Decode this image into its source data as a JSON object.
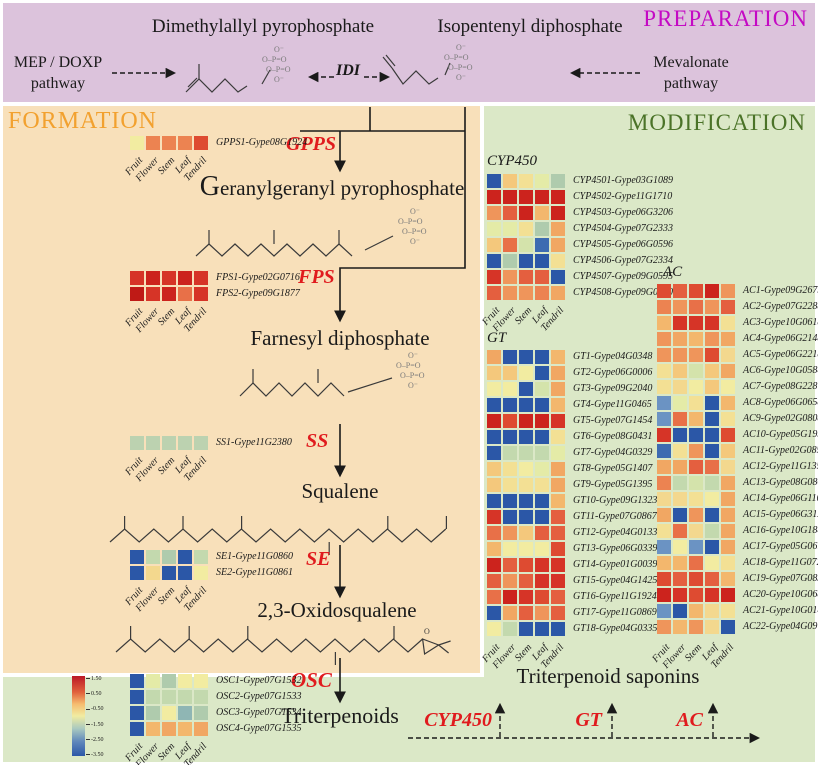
{
  "preparation": {
    "title": "PREPARATION",
    "title_color": "#c40ac4",
    "dmapp": "Dimethylallyl pyrophosphate",
    "ipp": "Isopentenyl diphosphate",
    "mep1": "MEP / DOXP",
    "mep2": "pathway",
    "mev1": "Mevalonate",
    "mev2": "pathway",
    "idi": "IDI"
  },
  "tissues": [
    "Fruit",
    "Flower",
    "Stem",
    "Leaf",
    "Tendril"
  ],
  "formation": {
    "title": "FORMATION",
    "title_color": "#f2a12f",
    "colorbar": {
      "ticks": [
        "1.50",
        "0.50",
        "-0.50",
        "-1.50",
        "-2.50",
        "-3.50"
      ]
    },
    "steps": [
      {
        "enzyme": "GPPS",
        "product": "Geranylgeranyl pyrophosphate",
        "genes": [
          {
            "label": "GPPS1-Gype08G1924",
            "colors": [
              "#f2eca1",
              "#ec8351",
              "#ec8351",
              "#ec8351",
              "#de4b31"
            ]
          }
        ]
      },
      {
        "enzyme": "FPS",
        "product": "Farnesyl diphosphate",
        "genes": [
          {
            "label": "FPS1-Gype02G0716",
            "colors": [
              "#d63427",
              "#cc231d",
              "#d63427",
              "#cc231d",
              "#d63427"
            ]
          },
          {
            "label": "FPS2-Gype09G1877",
            "colors": [
              "#bf1a16",
              "#d63427",
              "#cc231d",
              "#e87048",
              "#d63427"
            ]
          }
        ]
      },
      {
        "enzyme": "SS",
        "product": "Squalene",
        "genes": [
          {
            "label": "SS1-Gype11G2380",
            "colors": [
              "#bcd2b0",
              "#bcd2b0",
              "#bcd2b0",
              "#bcd2b0",
              "#bcd2b0"
            ]
          }
        ]
      },
      {
        "enzyme": "SE",
        "product": "2,3-Oxidosqualene",
        "genes": [
          {
            "label": "SE1-Gype11G0860",
            "colors": [
              "#2b57a7",
              "#c3d9ae",
              "#afcbad",
              "#2b57a7",
              "#c3d9ae"
            ]
          },
          {
            "label": "SE2-Gype11G0861",
            "colors": [
              "#2b57a7",
              "#f3d88e",
              "#2b57a7",
              "#2b57a7",
              "#f2eca1"
            ]
          }
        ]
      },
      {
        "enzyme": "OSC",
        "product": "Triterpenoids",
        "genes": [
          {
            "label": "OSC1-Gype07G1532",
            "colors": [
              "#2b57a7",
              "#e4eba7",
              "#afcbad",
              "#f2eca1",
              "#f2eca1"
            ]
          },
          {
            "label": "OSC2-Gype07G1533",
            "colors": [
              "#2b57a7",
              "#c3d9ae",
              "#c3d9ae",
              "#c3d9ae",
              "#c3d9ae"
            ]
          },
          {
            "label": "OSC3-Gype07G1534",
            "colors": [
              "#2b57a7",
              "#afcbad",
              "#f2eca1",
              "#8fb6b4",
              "#afcbad"
            ]
          },
          {
            "label": "OSC4-Gype07G1535",
            "colors": [
              "#2b57a7",
              "#f3b76d",
              "#f1a763",
              "#f3b76d",
              "#f1a763"
            ]
          }
        ]
      }
    ]
  },
  "modification": {
    "title": "MODIFICATION",
    "title_color": "#4b7328",
    "groups": [
      {
        "name": "CYP450",
        "genes": [
          {
            "label": "CYP4501-Gype03G1089",
            "colors": [
              "#2b57a7",
              "#f4c87c",
              "#f3e094",
              "#e4eba7",
              "#afcbad"
            ]
          },
          {
            "label": "CYP4502-Gype11G1710",
            "colors": [
              "#cc231d",
              "#cc231d",
              "#cc231d",
              "#cc231d",
              "#cc231d"
            ]
          },
          {
            "label": "CYP4503-Gype06G3206",
            "colors": [
              "#ef955b",
              "#e45f3f",
              "#cc231d",
              "#f3b76d",
              "#cc231d"
            ]
          },
          {
            "label": "CYP4504-Gype07G2333",
            "colors": [
              "#e4eba7",
              "#e4eba7",
              "#f3e094",
              "#afcbad",
              "#f1a763"
            ]
          },
          {
            "label": "CYP4505-Gype06G0596",
            "colors": [
              "#f4c87c",
              "#e87048",
              "#d4e3ab",
              "#3d6bb1",
              "#f1a763"
            ]
          },
          {
            "label": "CYP4506-Gype07G2334",
            "colors": [
              "#2b57a7",
              "#afcbad",
              "#2b57a7",
              "#2b57a7",
              "#f3e094"
            ]
          },
          {
            "label": "CYP4507-Gype09G0595",
            "colors": [
              "#d63427",
              "#ef955b",
              "#e45f3f",
              "#e45f3f",
              "#2b57a7"
            ]
          },
          {
            "label": "CYP4508-Gype09G0590",
            "colors": [
              "#e45f3f",
              "#ef955b",
              "#ef955b",
              "#ec8351",
              "#f1a763"
            ]
          }
        ]
      },
      {
        "name": "GT",
        "genes": [
          {
            "label": "GT1-Gype04G0348",
            "colors": [
              "#f1a763",
              "#2b57a7",
              "#2b57a7",
              "#2b57a7",
              "#f3b76d"
            ]
          },
          {
            "label": "GT2-Gype06G0006",
            "colors": [
              "#f4c87c",
              "#f4c87c",
              "#f2eca1",
              "#2b57a7",
              "#f1a763"
            ]
          },
          {
            "label": "GT3-Gype09G2040",
            "colors": [
              "#f2eca1",
              "#f2eca1",
              "#2b57a7",
              "#d4e3ab",
              "#f1a763"
            ]
          },
          {
            "label": "GT4-Gype11G0465",
            "colors": [
              "#2b57a7",
              "#2b57a7",
              "#2b57a7",
              "#2b57a7",
              "#f3b76d"
            ]
          },
          {
            "label": "GT5-Gype07G1454",
            "colors": [
              "#cc231d",
              "#de4b31",
              "#cc231d",
              "#cc231d",
              "#d63427"
            ]
          },
          {
            "label": "GT6-Gype08G0431",
            "colors": [
              "#2b57a7",
              "#2b57a7",
              "#2b57a7",
              "#2b57a7",
              "#f3e094"
            ]
          },
          {
            "label": "GT7-Gype04G0329",
            "colors": [
              "#2b57a7",
              "#c3d9ae",
              "#c3d9ae",
              "#c3d9ae",
              "#e4eba7"
            ]
          },
          {
            "label": "GT8-Gype05G1407",
            "colors": [
              "#f4c87c",
              "#f3e094",
              "#f2eca1",
              "#e4eba7",
              "#f1a763"
            ]
          },
          {
            "label": "GT9-Gype05G1395",
            "colors": [
              "#f4c87c",
              "#f3e094",
              "#f3e094",
              "#f3e094",
              "#f1a763"
            ]
          },
          {
            "label": "GT10-Gype09G1323",
            "colors": [
              "#2b57a7",
              "#2b57a7",
              "#2b57a7",
              "#2b57a7",
              "#f3b76d"
            ]
          },
          {
            "label": "GT11-Gype07G0867",
            "colors": [
              "#d63427",
              "#2b57a7",
              "#2b57a7",
              "#2b57a7",
              "#e45f3f"
            ]
          },
          {
            "label": "GT12-Gype04G0133",
            "colors": [
              "#e87048",
              "#ef955b",
              "#f4c87c",
              "#e45f3f",
              "#e45f3f"
            ]
          },
          {
            "label": "GT13-Gype06G0339",
            "colors": [
              "#f3b76d",
              "#f2eca1",
              "#f2eca1",
              "#f2eca1",
              "#de4b31"
            ]
          },
          {
            "label": "GT14-Gype01G0039",
            "colors": [
              "#cc231d",
              "#e45f3f",
              "#de4b31",
              "#d63427",
              "#d63427"
            ]
          },
          {
            "label": "GT15-Gype04G1425",
            "colors": [
              "#e45f3f",
              "#ef955b",
              "#e45f3f",
              "#d63427",
              "#d63427"
            ]
          },
          {
            "label": "GT16-Gype11G1924",
            "colors": [
              "#e87048",
              "#cc231d",
              "#d63427",
              "#de4b31",
              "#e45f3f"
            ]
          },
          {
            "label": "GT17-Gype11G0869",
            "colors": [
              "#2b57a7",
              "#f1a763",
              "#e45f3f",
              "#ef955b",
              "#e45f3f"
            ]
          },
          {
            "label": "GT18-Gype04G0335",
            "colors": [
              "#f2eca1",
              "#c3d9ae",
              "#2b57a7",
              "#2b57a7",
              "#2b57a7"
            ]
          }
        ]
      },
      {
        "name": "AC",
        "genes": [
          {
            "label": "AC1-Gype09G2675",
            "colors": [
              "#de4b31",
              "#e45f3f",
              "#de4b31",
              "#cc231d",
              "#ef955b"
            ]
          },
          {
            "label": "AC2-Gype07G2288",
            "colors": [
              "#ec8351",
              "#ef955b",
              "#e87048",
              "#ef955b",
              "#e45f3f"
            ]
          },
          {
            "label": "AC3-Gype10G0618",
            "colors": [
              "#f3b76d",
              "#d63427",
              "#d63427",
              "#d63427",
              "#f3e094"
            ]
          },
          {
            "label": "AC4-Gype06G2148",
            "colors": [
              "#ef955b",
              "#f1a763",
              "#f3b76d",
              "#ef955b",
              "#f1a763"
            ]
          },
          {
            "label": "AC5-Gype06G2218",
            "colors": [
              "#ef955b",
              "#ef955b",
              "#ef955b",
              "#de4b31",
              "#f3d88e"
            ]
          },
          {
            "label": "AC6-Gype10G0584",
            "colors": [
              "#f3e094",
              "#f4c87c",
              "#d4e3ab",
              "#f4c87c",
              "#f1a763"
            ]
          },
          {
            "label": "AC7-Gype08G2287",
            "colors": [
              "#f3e094",
              "#f3d88e",
              "#f2eca1",
              "#f4c87c",
              "#f2eca1"
            ]
          },
          {
            "label": "AC8-Gype06G0658",
            "colors": [
              "#6b93c3",
              "#e4eba7",
              "#f3e094",
              "#2b57a7",
              "#f3b76d"
            ]
          },
          {
            "label": "AC9-Gype02G0808",
            "colors": [
              "#6b93c3",
              "#e87048",
              "#f3b76d",
              "#2b57a7",
              "#f3e094"
            ]
          },
          {
            "label": "AC10-Gype05G1951",
            "colors": [
              "#d63427",
              "#2b57a7",
              "#2b57a7",
              "#2b57a7",
              "#de4b31"
            ]
          },
          {
            "label": "AC11-Gype02G0856",
            "colors": [
              "#3d6bb1",
              "#f3e094",
              "#ef955b",
              "#2b57a7",
              "#f4c87c"
            ]
          },
          {
            "label": "AC12-Gype11G1352",
            "colors": [
              "#f1a763",
              "#f1a763",
              "#e45f3f",
              "#e87048",
              "#f3d88e"
            ]
          },
          {
            "label": "AC13-Gype08G0863",
            "colors": [
              "#ec8351",
              "#c3d9ae",
              "#d4e3ab",
              "#c3d9ae",
              "#f1a763"
            ]
          },
          {
            "label": "AC14-Gype06G1106",
            "colors": [
              "#f3d88e",
              "#f3d88e",
              "#f3e094",
              "#f2eca1",
              "#f1a763"
            ]
          },
          {
            "label": "AC15-Gype06G3122",
            "colors": [
              "#f1a763",
              "#2b57a7",
              "#ef955b",
              "#2b57a7",
              "#f1a763"
            ]
          },
          {
            "label": "AC16-Gype10G1848",
            "colors": [
              "#f3e094",
              "#e87048",
              "#f3d88e",
              "#c3d9ae",
              "#f1a763"
            ]
          },
          {
            "label": "AC17-Gype05G0613",
            "colors": [
              "#6b93c3",
              "#f2eca1",
              "#6b93c3",
              "#2b57a7",
              "#f1a763"
            ]
          },
          {
            "label": "AC18-Gype11G0727",
            "colors": [
              "#f3b76d",
              "#f3b76d",
              "#e87048",
              "#f2eca1",
              "#f3e094"
            ]
          },
          {
            "label": "AC19-Gype07G0838",
            "colors": [
              "#de4b31",
              "#e45f3f",
              "#de4b31",
              "#e45f3f",
              "#f3b76d"
            ]
          },
          {
            "label": "AC20-Gype10G0687",
            "colors": [
              "#cc231d",
              "#d63427",
              "#de4b31",
              "#d63427",
              "#cc231d"
            ]
          },
          {
            "label": "AC21-Gype10G0140",
            "colors": [
              "#6b93c3",
              "#2b57a7",
              "#f3b76d",
              "#f3d88e",
              "#f3e094"
            ]
          },
          {
            "label": "AC22-Gype04G0973",
            "colors": [
              "#ef955b",
              "#f3b76d",
              "#ef955b",
              "#f3d88e",
              "#2b57a7"
            ]
          }
        ]
      }
    ]
  },
  "bottom": {
    "product": "Triterpenoid saponins",
    "enzymes": [
      "CYP450",
      "GT",
      "AC"
    ]
  }
}
